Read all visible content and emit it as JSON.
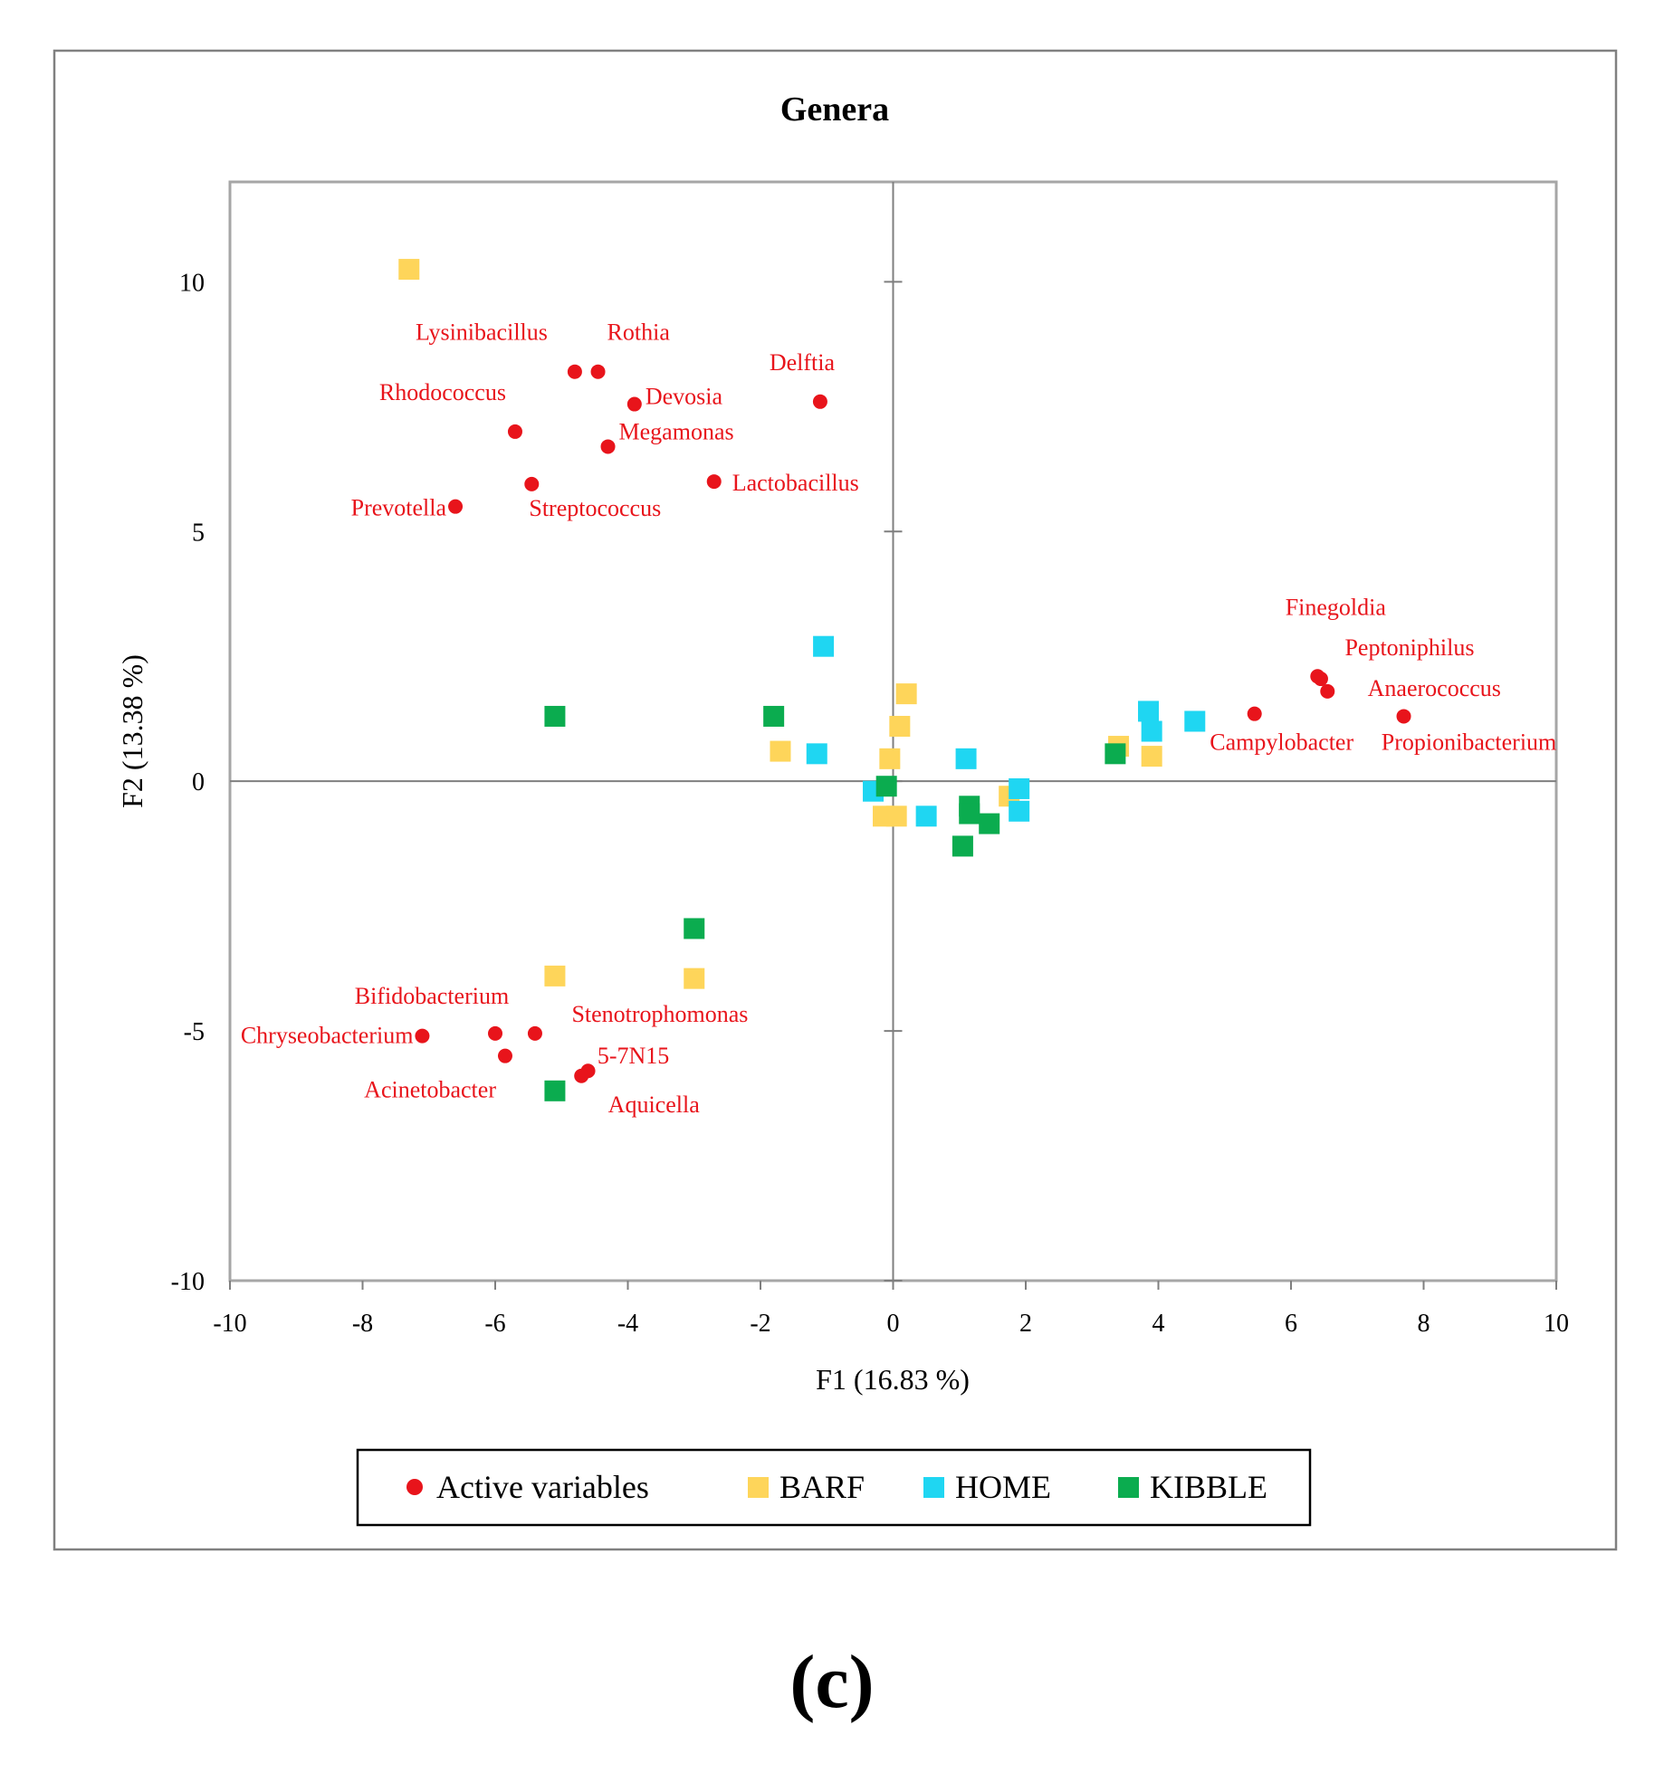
{
  "chart_data": {
    "type": "scatter",
    "title": "Genera",
    "xlabel": "F1 (16.83 %)",
    "ylabel": "F2 (13.38 %)",
    "xlim": [
      -10,
      10
    ],
    "ylim": [
      -10,
      12
    ],
    "xticks": [
      -10,
      -8,
      -6,
      -4,
      -2,
      0,
      2,
      4,
      6,
      8,
      10
    ],
    "yticks": [
      -10,
      -5,
      0,
      5,
      10
    ],
    "grid": false,
    "legend_position": "bottom",
    "legend": [
      "Active variables",
      "BARF",
      "HOME",
      "KIBBLE"
    ],
    "colors": {
      "active": "#e8141b",
      "barf": "#fed55a",
      "home": "#1fd6f2",
      "kibble": "#0bac4f"
    },
    "active_variables": [
      {
        "name": "Lysinibacillus",
        "x": -4.8,
        "y": 8.2
      },
      {
        "name": "Rothia",
        "x": -4.45,
        "y": 8.2
      },
      {
        "name": "Delftia",
        "x": -1.1,
        "y": 7.6
      },
      {
        "name": "Rhodococcus",
        "x": -5.7,
        "y": 7.0
      },
      {
        "name": "Devosia",
        "x": -3.9,
        "y": 7.55
      },
      {
        "name": "Megamonas",
        "x": -4.3,
        "y": 6.7
      },
      {
        "name": "Lactobacillus",
        "x": -2.7,
        "y": 6.0
      },
      {
        "name": "Streptococcus",
        "x": -5.45,
        "y": 5.95
      },
      {
        "name": "Prevotella",
        "x": -6.6,
        "y": 5.5
      },
      {
        "name": "Finegoldia",
        "x": 6.4,
        "y": 2.1
      },
      {
        "name": "Peptoniphilus",
        "x": 6.45,
        "y": 2.05
      },
      {
        "name": "Anaerococcus",
        "x": 6.55,
        "y": 1.8
      },
      {
        "name": "Campylobacter",
        "x": 5.45,
        "y": 1.35
      },
      {
        "name": "Propionibacterium",
        "x": 7.7,
        "y": 1.3
      },
      {
        "name": "Bifidobacterium",
        "x": -6.0,
        "y": -5.05
      },
      {
        "name": "Chryseobacterium",
        "x": -7.1,
        "y": -5.1
      },
      {
        "name": "Stenotrophomonas",
        "x": -5.4,
        "y": -5.05
      },
      {
        "name": "Acinetobacter",
        "x": -5.85,
        "y": -5.5
      },
      {
        "name": "5-7N15",
        "x": -4.6,
        "y": -5.8
      },
      {
        "name": "Aquicella",
        "x": -4.7,
        "y": -5.9
      }
    ],
    "series": [
      {
        "name": "BARF",
        "points": [
          [
            -7.3,
            10.25
          ],
          [
            -1.7,
            0.6
          ],
          [
            0.2,
            1.75
          ],
          [
            0.1,
            1.1
          ],
          [
            -0.05,
            0.45
          ],
          [
            -0.15,
            -0.7
          ],
          [
            0.05,
            -0.7
          ],
          [
            1.75,
            -0.3
          ],
          [
            3.4,
            0.7
          ],
          [
            3.9,
            0.5
          ],
          [
            -5.1,
            -3.9
          ],
          [
            -3.0,
            -3.95
          ]
        ]
      },
      {
        "name": "HOME",
        "points": [
          [
            -1.05,
            2.7
          ],
          [
            -1.15,
            0.55
          ],
          [
            -0.3,
            -0.2
          ],
          [
            0.5,
            -0.7
          ],
          [
            1.1,
            0.45
          ],
          [
            1.9,
            -0.15
          ],
          [
            1.9,
            -0.6
          ],
          [
            3.85,
            1.4
          ],
          [
            3.9,
            1.0
          ],
          [
            4.55,
            1.2
          ]
        ]
      },
      {
        "name": "KIBBLE",
        "points": [
          [
            -5.1,
            1.3
          ],
          [
            -1.8,
            1.3
          ],
          [
            -0.1,
            -0.1
          ],
          [
            1.15,
            -0.5
          ],
          [
            1.15,
            -0.65
          ],
          [
            1.45,
            -0.85
          ],
          [
            1.05,
            -1.3
          ],
          [
            3.35,
            0.55
          ],
          [
            -3.0,
            -2.95
          ],
          [
            -5.1,
            -6.2
          ]
        ]
      }
    ]
  },
  "panel_label": "(c)"
}
